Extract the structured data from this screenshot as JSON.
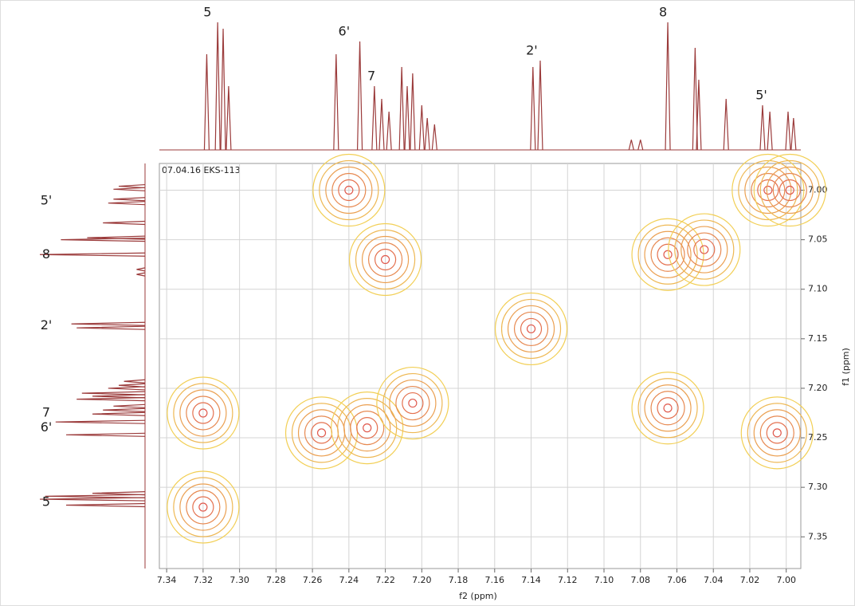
{
  "chart_data": {
    "type": "contour",
    "annotation": "07.04.16 EKS-113",
    "xlabel": "f2 (ppm)",
    "ylabel": "f1 (ppm)",
    "xlim": [
      7.344,
      6.992
    ],
    "ylim": [
      6.973,
      7.382
    ],
    "xticks": [
      7.34,
      7.32,
      {
        "value": 7.3,
        "label": "7.30"
      },
      7.28,
      7.26,
      7.24,
      7.22,
      {
        "value": 7.2,
        "label": "7.20"
      },
      7.18,
      7.16,
      7.14,
      7.12,
      {
        "value": 7.1,
        "label": "7.10"
      },
      7.08,
      7.06,
      7.04,
      7.02,
      {
        "value": 7,
        "label": "7.00"
      }
    ],
    "yticks": [
      {
        "value": 7,
        "label": "7.00"
      },
      7.05,
      {
        "value": 7.1,
        "label": "7.10"
      },
      7.15,
      {
        "value": 7.2,
        "label": "7.20"
      },
      7.25,
      {
        "value": 7.3,
        "label": "7.30"
      },
      7.35
    ],
    "grid": true,
    "inner_color": "#e05a4e",
    "outer_color": "#f2cf55",
    "spectrum_color": "#9b3b3b",
    "peaks": [
      {
        "x": 7.32,
        "y": 7.32
      },
      {
        "x": 7.32,
        "y": 7.225
      },
      {
        "x": 7.24,
        "y": 7.0
      },
      {
        "x": 7.22,
        "y": 7.07
      },
      {
        "x": 7.255,
        "y": 7.245
      },
      {
        "x": 7.23,
        "y": 7.24
      },
      {
        "x": 7.205,
        "y": 7.215
      },
      {
        "x": 7.14,
        "y": 7.14
      },
      {
        "x": 7.065,
        "y": 7.065
      },
      {
        "x": 7.045,
        "y": 7.06
      },
      {
        "x": 7.065,
        "y": 7.22
      },
      {
        "x": 7.01,
        "y": 7.0
      },
      {
        "x": 6.998,
        "y": 7.0
      },
      {
        "x": 7.005,
        "y": 7.245
      }
    ],
    "spectrum": {
      "x": [
        7.318,
        7.312,
        7.309,
        7.306,
        7.247,
        7.234,
        7.226,
        7.222,
        7.218,
        7.211,
        7.208,
        7.205,
        7.2,
        7.197,
        7.193,
        7.139,
        7.135,
        7.085,
        7.08,
        7.065,
        7.05,
        7.048,
        7.033,
        7.013,
        7.009,
        6.999,
        6.996
      ],
      "values": [
        0.75,
        1.0,
        0.95,
        0.5,
        0.75,
        0.85,
        0.5,
        0.4,
        0.3,
        0.65,
        0.5,
        0.6,
        0.35,
        0.25,
        0.2,
        0.65,
        0.7,
        0.08,
        0.08,
        1.0,
        0.8,
        0.55,
        0.4,
        0.35,
        0.3,
        0.3,
        0.25
      ]
    },
    "peak_labels": [
      {
        "text": "5",
        "ppm": 7.315
      },
      {
        "text": "6'",
        "ppm": 7.24
      },
      {
        "text": "7",
        "ppm": 7.225
      },
      {
        "text": "2'",
        "ppm": 7.137
      },
      {
        "text": "8",
        "ppm": 7.065
      },
      {
        "text": "5'",
        "ppm": 7.011
      }
    ]
  }
}
